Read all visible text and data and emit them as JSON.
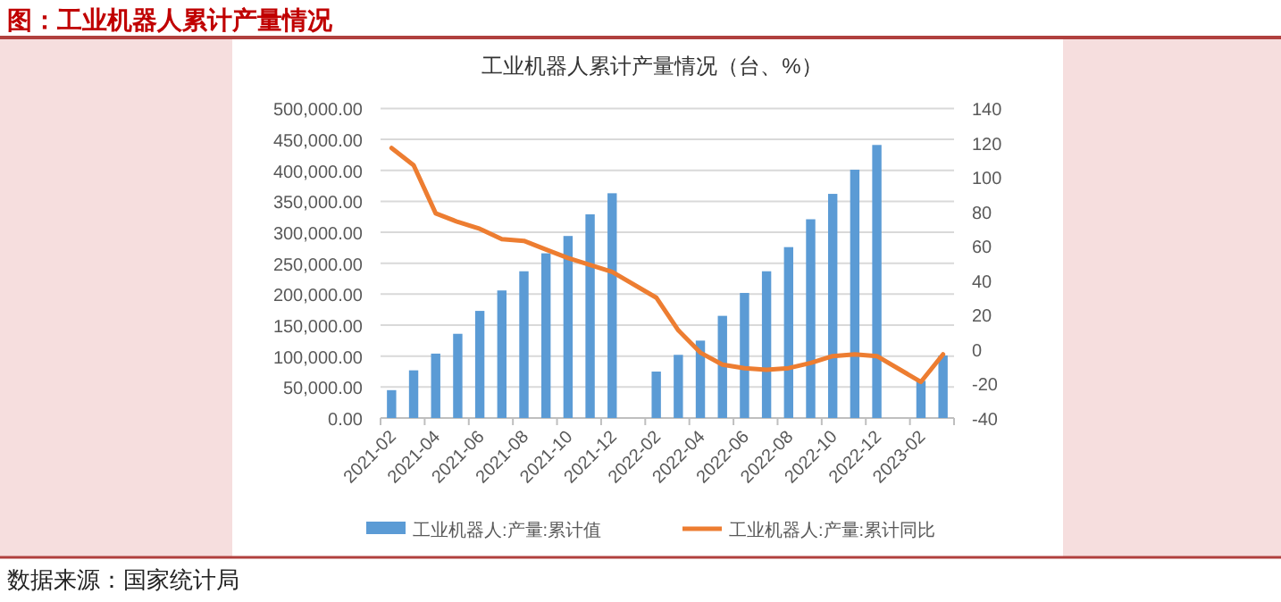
{
  "chart_data": {
    "type": "bar",
    "title": "图：工业机器人累计产量情况",
    "subtitle": "工业机器人累计产量情况（台、%）",
    "categories": [
      "2021-02",
      null,
      "2021-04",
      null,
      "2021-06",
      null,
      "2021-08",
      null,
      "2021-10",
      null,
      "2021-12",
      null,
      "2022-02",
      null,
      "2022-04",
      null,
      "2022-06",
      null,
      "2022-08",
      null,
      "2022-10",
      null,
      "2022-12",
      null,
      "2023-02",
      null
    ],
    "series": [
      {
        "name": "工业机器人:产量:累计值",
        "color": "#5b9bd5",
        "values": [
          45000,
          77000,
          104000,
          136000,
          173000,
          206000,
          237000,
          266000,
          294000,
          329000,
          363000,
          null,
          75000,
          102000,
          125000,
          165000,
          202000,
          237000,
          276000,
          321000,
          362000,
          401000,
          441000,
          null,
          60000,
          101000
        ]
      },
      {
        "name": "工业机器人:产量:累计同比",
        "type": "line",
        "axis": "y2",
        "color": "#ed7d31",
        "values": [
          117,
          107,
          79,
          74,
          70,
          64,
          63,
          58,
          53,
          49,
          45,
          null,
          30,
          11,
          -2,
          -9,
          -11,
          -12,
          -11,
          -8,
          -4,
          -3,
          -4,
          null,
          -19,
          -3
        ]
      }
    ],
    "ylim": [
      0,
      500000
    ],
    "yticks": [
      {
        "value": 0,
        "label": "0.00"
      },
      {
        "value": 50000,
        "label": "50,000.00"
      },
      {
        "value": 100000,
        "label": "100,000.00"
      },
      {
        "value": 150000,
        "label": "150,000.00"
      },
      {
        "value": 200000,
        "label": "200,000.00"
      },
      {
        "value": 250000,
        "label": "250,000.00"
      },
      {
        "value": 300000,
        "label": "300,000.00"
      },
      {
        "value": 350000,
        "label": "350,000.00"
      },
      {
        "value": 400000,
        "label": "400,000.00"
      },
      {
        "value": 450000,
        "label": "450,000.00"
      },
      {
        "value": 500000,
        "label": "500,000.00"
      }
    ],
    "y2lim": [
      -40,
      140
    ],
    "y2ticks": [
      -40,
      -20,
      0,
      20,
      40,
      60,
      80,
      100,
      120,
      140
    ],
    "grid": "y",
    "legend": "bottom",
    "annotations": [
      "数据来源：国家统计局"
    ]
  }
}
